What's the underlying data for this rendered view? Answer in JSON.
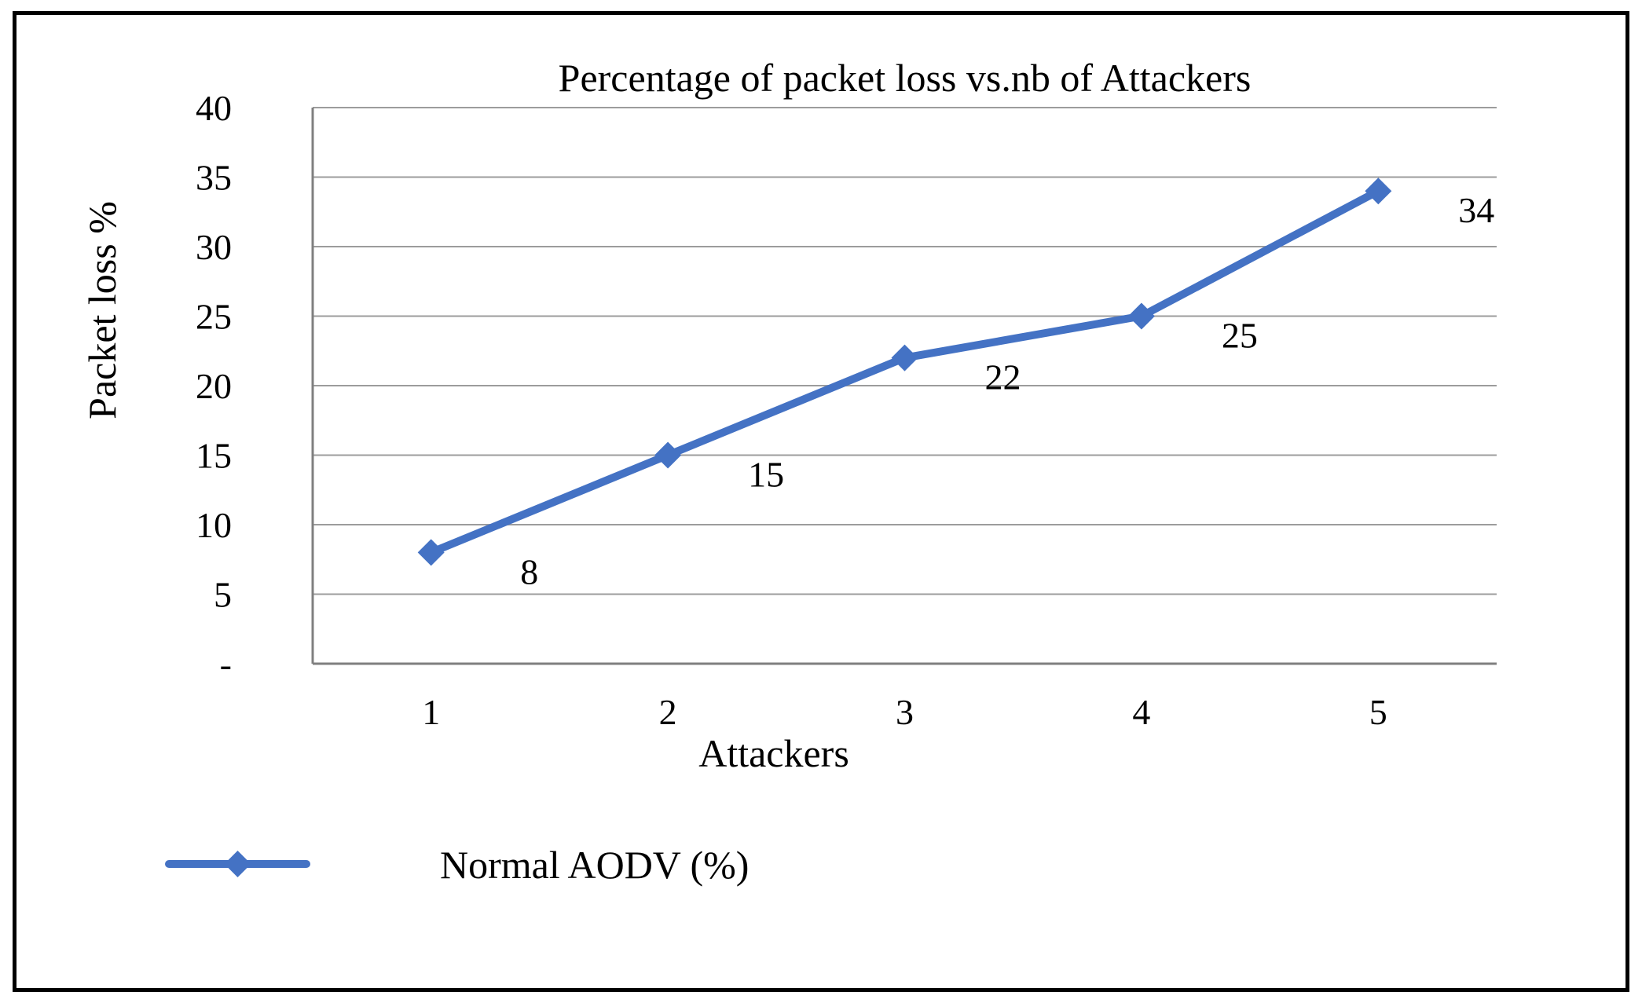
{
  "chart_data": {
    "type": "line",
    "title": "Percentage of packet loss vs.nb of Attackers",
    "xlabel": "Attackers",
    "ylabel": "Packet loss %",
    "categories": [
      "1",
      "2",
      "3",
      "4",
      "5"
    ],
    "series": [
      {
        "name": "Normal AODV (%)",
        "values": [
          8,
          15,
          22,
          25,
          34
        ],
        "color": "#4472C4",
        "marker": "diamond"
      }
    ],
    "data_labels": [
      "8",
      "15",
      "22",
      "25",
      "34"
    ],
    "ylim": [
      0,
      40
    ],
    "ytick_step": 5,
    "ytick_labels": [
      "-",
      "5",
      "10",
      "15",
      "20",
      "25",
      "30",
      "35",
      "40"
    ],
    "grid": "horizontal",
    "legend_position": "bottom-left"
  },
  "colors": {
    "line": "#4472C4",
    "gridline": "#9C9C9C",
    "axis": "#7F7F7F",
    "border": "#000000"
  }
}
